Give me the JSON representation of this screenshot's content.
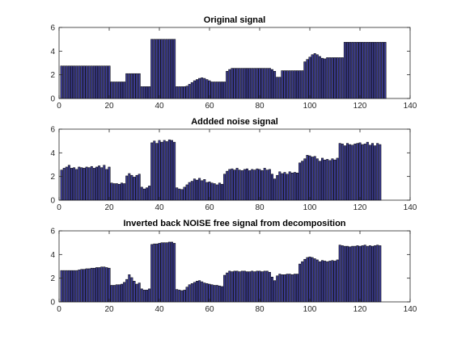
{
  "figure": {
    "background": "#ffffff"
  },
  "chart_data": [
    {
      "type": "bar",
      "title": "Original signal",
      "xlim": [
        0,
        140
      ],
      "ylim": [
        0,
        6
      ],
      "xticks": [
        0,
        20,
        40,
        60,
        80,
        100,
        120,
        140
      ],
      "yticks": [
        0,
        2,
        4,
        6
      ],
      "bar_color": "#3b3b8f",
      "edge_color": "#000000",
      "grid": false,
      "x_start": 1,
      "values": [
        2.75,
        2.75,
        2.75,
        2.75,
        2.75,
        2.75,
        2.75,
        2.75,
        2.75,
        2.75,
        2.75,
        2.75,
        2.75,
        2.75,
        2.75,
        2.75,
        2.75,
        2.75,
        2.75,
        2.75,
        1.4,
        1.4,
        1.4,
        1.4,
        1.4,
        1.4,
        2.1,
        2.1,
        2.1,
        2.1,
        2.1,
        2.1,
        1.0,
        1.0,
        1.0,
        1.0,
        5.0,
        5.0,
        5.0,
        5.0,
        5.0,
        5.0,
        5.0,
        5.0,
        5.0,
        5.0,
        1.0,
        1.0,
        1.0,
        1.0,
        1.05,
        1.2,
        1.35,
        1.5,
        1.6,
        1.7,
        1.75,
        1.7,
        1.6,
        1.5,
        1.4,
        1.4,
        1.4,
        1.4,
        1.4,
        1.4,
        2.3,
        2.45,
        2.55,
        2.55,
        2.55,
        2.55,
        2.55,
        2.55,
        2.55,
        2.55,
        2.55,
        2.55,
        2.55,
        2.55,
        2.55,
        2.55,
        2.55,
        2.55,
        2.45,
        2.3,
        1.8,
        1.8,
        2.35,
        2.35,
        2.35,
        2.35,
        2.35,
        2.35,
        2.35,
        2.35,
        2.35,
        3.1,
        3.3,
        3.5,
        3.7,
        3.8,
        3.7,
        3.55,
        3.4,
        3.35,
        3.45,
        3.45,
        3.45,
        3.45,
        3.45,
        3.45,
        3.45,
        4.75,
        4.75,
        4.75,
        4.75,
        4.75,
        4.75,
        4.75,
        4.75,
        4.75,
        4.75,
        4.75,
        4.75,
        4.75,
        4.75,
        4.75,
        4.75,
        4.75
      ]
    },
    {
      "type": "bar",
      "title": "Addded noise signal",
      "xlim": [
        0,
        140
      ],
      "ylim": [
        0,
        6
      ],
      "xticks": [
        0,
        20,
        40,
        60,
        80,
        100,
        120,
        140
      ],
      "yticks": [
        0,
        2,
        4,
        6
      ],
      "bar_color": "#3b3b8f",
      "edge_color": "#000000",
      "grid": false,
      "x_start": 1,
      "values": [
        2.55,
        2.7,
        2.8,
        2.95,
        2.7,
        2.75,
        2.6,
        2.8,
        2.75,
        2.7,
        2.8,
        2.75,
        2.85,
        2.7,
        2.8,
        2.9,
        2.75,
        2.95,
        2.6,
        2.8,
        1.45,
        1.4,
        1.4,
        1.35,
        1.45,
        1.4,
        2.05,
        2.25,
        2.1,
        1.95,
        2.1,
        2.2,
        1.1,
        0.95,
        1.05,
        1.2,
        4.85,
        5.0,
        4.8,
        5.05,
        4.9,
        5.05,
        4.95,
        5.1,
        5.05,
        4.9,
        1.05,
        0.95,
        0.9,
        1.1,
        1.3,
        1.5,
        1.6,
        1.8,
        1.7,
        1.85,
        1.65,
        1.75,
        1.5,
        1.55,
        1.45,
        1.4,
        1.3,
        1.45,
        1.35,
        2.2,
        2.45,
        2.6,
        2.65,
        2.55,
        2.7,
        2.55,
        2.5,
        2.6,
        2.65,
        2.5,
        2.6,
        2.55,
        2.65,
        2.6,
        2.5,
        2.7,
        2.55,
        2.6,
        2.2,
        1.8,
        2.1,
        2.4,
        2.25,
        2.35,
        2.2,
        2.4,
        2.3,
        2.35,
        2.3,
        3.15,
        3.3,
        3.5,
        3.8,
        3.75,
        3.65,
        3.7,
        3.5,
        3.3,
        3.55,
        3.4,
        3.45,
        3.35,
        3.5,
        3.4,
        3.55,
        4.8,
        4.75,
        4.6,
        4.8,
        4.7,
        4.65,
        4.75,
        4.8,
        4.85,
        4.7,
        4.75,
        4.9,
        4.65,
        4.8,
        4.6,
        4.8,
        4.7
      ]
    },
    {
      "type": "bar",
      "title": "Inverted back NOISE free signal from decomposition",
      "xlim": [
        0,
        140
      ],
      "ylim": [
        0,
        6
      ],
      "xticks": [
        0,
        20,
        40,
        60,
        80,
        100,
        120,
        140
      ],
      "yticks": [
        0,
        2,
        4,
        6
      ],
      "bar_color": "#3b3b8f",
      "edge_color": "#000000",
      "grid": false,
      "x_start": 1,
      "values": [
        2.65,
        2.65,
        2.65,
        2.65,
        2.65,
        2.65,
        2.65,
        2.7,
        2.75,
        2.75,
        2.8,
        2.8,
        2.85,
        2.85,
        2.9,
        2.9,
        2.95,
        2.95,
        2.9,
        2.85,
        1.4,
        1.4,
        1.45,
        1.45,
        1.5,
        1.65,
        1.9,
        2.3,
        2.05,
        1.75,
        1.5,
        1.6,
        1.1,
        1.0,
        1.0,
        1.1,
        4.85,
        4.9,
        4.9,
        4.95,
        5.0,
        5.0,
        5.0,
        5.05,
        5.05,
        4.95,
        1.05,
        1.0,
        0.95,
        1.0,
        1.25,
        1.45,
        1.55,
        1.65,
        1.75,
        1.8,
        1.7,
        1.6,
        1.55,
        1.5,
        1.45,
        1.4,
        1.4,
        1.35,
        1.3,
        2.25,
        2.45,
        2.6,
        2.55,
        2.6,
        2.6,
        2.55,
        2.6,
        2.6,
        2.55,
        2.55,
        2.6,
        2.55,
        2.6,
        2.6,
        2.55,
        2.6,
        2.6,
        2.5,
        2.1,
        1.8,
        2.2,
        2.35,
        2.3,
        2.3,
        2.35,
        2.35,
        2.3,
        2.35,
        2.35,
        3.2,
        3.4,
        3.6,
        3.75,
        3.8,
        3.75,
        3.65,
        3.55,
        3.4,
        3.5,
        3.45,
        3.4,
        3.45,
        3.5,
        3.45,
        3.55,
        4.8,
        4.75,
        4.7,
        4.7,
        4.65,
        4.7,
        4.7,
        4.75,
        4.7,
        4.75,
        4.8,
        4.7,
        4.75,
        4.7,
        4.75,
        4.8,
        4.75
      ]
    }
  ]
}
